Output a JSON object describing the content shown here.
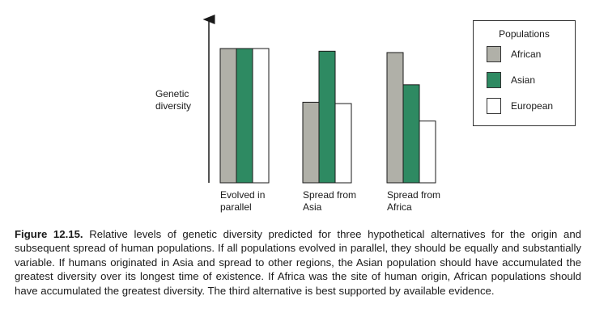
{
  "chart_data": {
    "type": "bar",
    "ylabel": "Genetic diversity",
    "categories": [
      "Evolved in parallel",
      "Spread from Asia",
      "Spread from Africa"
    ],
    "category_lines": [
      [
        "Evolved in",
        "parallel"
      ],
      [
        "Spread from",
        "Asia"
      ],
      [
        "Spread from",
        "Africa"
      ]
    ],
    "series": [
      {
        "name": "African",
        "values": [
          10,
          6.0,
          9.7
        ],
        "color": "#b0b0a8"
      },
      {
        "name": "Asian",
        "values": [
          10,
          9.8,
          7.3
        ],
        "color": "#2e8a62"
      },
      {
        "name": "European",
        "values": [
          10,
          5.9,
          4.6
        ],
        "color": "#ffffff"
      }
    ],
    "ylim": [
      0,
      10
    ],
    "y_ticks": "none",
    "grid": false,
    "legend_position": "top-right",
    "legend_title": "Populations"
  },
  "caption": {
    "label": "Figure 12.15.",
    "text": "Relative levels of genetic diversity predicted for three hypothetical alternatives for the origin and subsequent spread of human populations. If all populations evolved in parallel, they should be equally and substantially variable. If humans originated in Asia and spread to other regions, the Asian population should have accumulated the greatest diversity over its longest time of existence. If Africa was the site of human origin, African populations should have accumulated the greatest diversity. The third alternative is best supported by available evidence."
  }
}
